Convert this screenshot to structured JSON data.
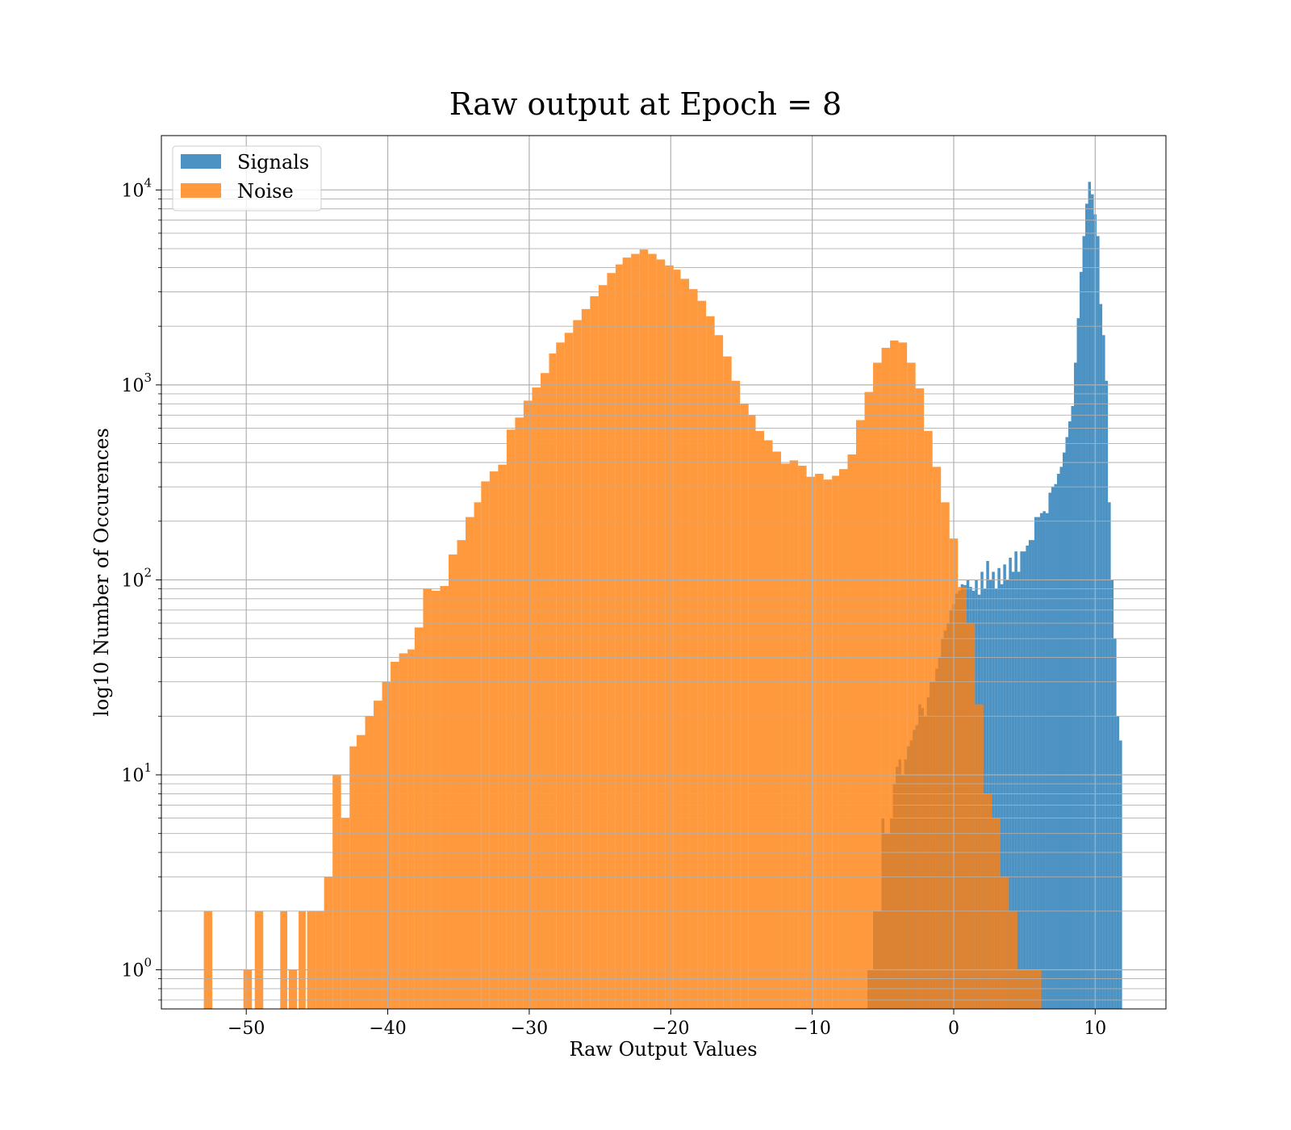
{
  "chart_data": {
    "type": "bar",
    "title": "Raw output at Epoch = 8",
    "xlabel": "Raw Output Values",
    "ylabel": "log10 Number of Occurences",
    "xlim": [
      -56,
      15
    ],
    "ylim": [
      0.63,
      19000
    ],
    "yscale": "log",
    "grid": true,
    "legend_position": "top-left",
    "x_ticks": [
      -50,
      -40,
      -30,
      -20,
      -10,
      0,
      10
    ],
    "x_tick_labels": [
      "−50",
      "−40",
      "−30",
      "−20",
      "−10",
      "0",
      "10"
    ],
    "y_ticks": [
      {
        "value": 1,
        "base": "10",
        "exp": "0"
      },
      {
        "value": 10,
        "base": "10",
        "exp": "1"
      },
      {
        "value": 100,
        "base": "10",
        "exp": "2"
      },
      {
        "value": 1000,
        "base": "10",
        "exp": "3"
      },
      {
        "value": 10000,
        "base": "10",
        "exp": "4"
      }
    ],
    "series": [
      {
        "name": "Signals",
        "color": "#1f77b4",
        "bins": [
          [
            -6.1,
            -5.9,
            1
          ],
          [
            -5.9,
            -5.7,
            1
          ],
          [
            -5.7,
            -5.5,
            2
          ],
          [
            -5.5,
            -5.3,
            2
          ],
          [
            -5.3,
            -5.1,
            2
          ],
          [
            -5.1,
            -4.9,
            6
          ],
          [
            -4.9,
            -4.7,
            5
          ],
          [
            -4.7,
            -4.5,
            5
          ],
          [
            -4.5,
            -4.3,
            6
          ],
          [
            -4.3,
            -4.1,
            9
          ],
          [
            -4.1,
            -3.9,
            11
          ],
          [
            -3.9,
            -3.7,
            12
          ],
          [
            -3.7,
            -3.5,
            10
          ],
          [
            -3.5,
            -3.3,
            12
          ],
          [
            -3.3,
            -3.1,
            14
          ],
          [
            -3.1,
            -2.9,
            15
          ],
          [
            -2.9,
            -2.7,
            17
          ],
          [
            -2.7,
            -2.5,
            18
          ],
          [
            -2.5,
            -2.3,
            23
          ],
          [
            -2.3,
            -2.1,
            22
          ],
          [
            -2.1,
            -1.9,
            20
          ],
          [
            -1.9,
            -1.7,
            25
          ],
          [
            -1.7,
            -1.5,
            30
          ],
          [
            -1.5,
            -1.3,
            30
          ],
          [
            -1.3,
            -1.1,
            35
          ],
          [
            -1.1,
            -0.9,
            40
          ],
          [
            -0.9,
            -0.7,
            50
          ],
          [
            -0.7,
            -0.5,
            55
          ],
          [
            -0.5,
            -0.3,
            60
          ],
          [
            -0.3,
            -0.1,
            70
          ],
          [
            -0.1,
            0.1,
            75
          ],
          [
            0.1,
            0.3,
            85
          ],
          [
            0.3,
            0.5,
            88
          ],
          [
            0.5,
            0.7,
            95
          ],
          [
            0.7,
            0.9,
            94
          ],
          [
            0.9,
            1.1,
            100
          ],
          [
            1.1,
            1.3,
            92
          ],
          [
            1.3,
            1.5,
            88
          ],
          [
            1.5,
            1.7,
            100
          ],
          [
            1.7,
            1.9,
            84
          ],
          [
            1.9,
            2.1,
            110
          ],
          [
            2.1,
            2.3,
            90
          ],
          [
            2.3,
            2.5,
            125
          ],
          [
            2.5,
            2.7,
            100
          ],
          [
            2.7,
            2.9,
            110
          ],
          [
            2.9,
            3.1,
            90
          ],
          [
            3.1,
            3.3,
            115
          ],
          [
            3.3,
            3.5,
            95
          ],
          [
            3.5,
            3.7,
            120
          ],
          [
            3.7,
            3.9,
            100
          ],
          [
            3.9,
            4.1,
            130
          ],
          [
            4.1,
            4.3,
            110
          ],
          [
            4.3,
            4.5,
            140
          ],
          [
            4.5,
            4.7,
            110
          ],
          [
            4.7,
            4.9,
            140
          ],
          [
            4.9,
            5.1,
            140
          ],
          [
            5.1,
            5.3,
            150
          ],
          [
            5.3,
            5.5,
            160
          ],
          [
            5.5,
            5.7,
            160
          ],
          [
            5.7,
            5.9,
            210
          ],
          [
            5.9,
            6.1,
            210
          ],
          [
            6.1,
            6.3,
            220
          ],
          [
            6.3,
            6.5,
            225
          ],
          [
            6.5,
            6.7,
            220
          ],
          [
            6.7,
            6.9,
            280
          ],
          [
            6.9,
            7.1,
            300
          ],
          [
            7.1,
            7.3,
            310
          ],
          [
            7.3,
            7.5,
            350
          ],
          [
            7.5,
            7.7,
            380
          ],
          [
            7.7,
            7.9,
            450
          ],
          [
            7.9,
            8.1,
            540
          ],
          [
            8.1,
            8.3,
            650
          ],
          [
            8.3,
            8.5,
            780
          ],
          [
            8.5,
            8.7,
            1300
          ],
          [
            8.7,
            8.9,
            2200
          ],
          [
            8.9,
            9.1,
            3800
          ],
          [
            9.1,
            9.3,
            5800
          ],
          [
            9.3,
            9.5,
            8500
          ],
          [
            9.5,
            9.7,
            11000
          ],
          [
            9.7,
            9.9,
            9500
          ],
          [
            9.9,
            10.1,
            7500
          ],
          [
            10.1,
            10.3,
            5800
          ],
          [
            10.3,
            10.5,
            2600
          ],
          [
            10.5,
            10.7,
            1800
          ],
          [
            10.7,
            10.9,
            1050
          ],
          [
            10.9,
            11.1,
            250
          ],
          [
            11.1,
            11.3,
            100
          ],
          [
            11.3,
            11.5,
            50
          ],
          [
            11.5,
            11.7,
            20
          ],
          [
            11.7,
            11.9,
            15
          ]
        ]
      },
      {
        "name": "Noise",
        "color": "#ff7f0e",
        "bins": [
          [
            -53,
            -52.4,
            2
          ],
          [
            -50.2,
            -49.6,
            1
          ],
          [
            -49.4,
            -48.8,
            2
          ],
          [
            -47.6,
            -47.1,
            2
          ],
          [
            -47,
            -46.4,
            1
          ],
          [
            -46.3,
            -45.8,
            2
          ],
          [
            -45.7,
            -45.1,
            2
          ],
          [
            -45.1,
            -44.5,
            2
          ],
          [
            -44.5,
            -43.9,
            3
          ],
          [
            -43.9,
            -43.3,
            10
          ],
          [
            -43.3,
            -42.7,
            6
          ],
          [
            -42.7,
            -42.2,
            14
          ],
          [
            -42.2,
            -41.6,
            16
          ],
          [
            -41.6,
            -41,
            20
          ],
          [
            -41,
            -40.4,
            24
          ],
          [
            -40.4,
            -39.8,
            30
          ],
          [
            -39.8,
            -39.2,
            38
          ],
          [
            -39.2,
            -38.6,
            42
          ],
          [
            -38.6,
            -38.1,
            44
          ],
          [
            -38.1,
            -37.5,
            57
          ],
          [
            -37.5,
            -36.9,
            90
          ],
          [
            -36.9,
            -36.3,
            88
          ],
          [
            -36.3,
            -35.7,
            93
          ],
          [
            -35.7,
            -35.1,
            135
          ],
          [
            -35.1,
            -34.5,
            160
          ],
          [
            -34.5,
            -33.9,
            210
          ],
          [
            -33.9,
            -33.4,
            250
          ],
          [
            -33.4,
            -32.8,
            320
          ],
          [
            -32.8,
            -32.2,
            360
          ],
          [
            -32.2,
            -31.6,
            390
          ],
          [
            -31.6,
            -31,
            590
          ],
          [
            -31,
            -30.4,
            680
          ],
          [
            -30.4,
            -29.8,
            830
          ],
          [
            -29.8,
            -29.2,
            970
          ],
          [
            -29.2,
            -28.6,
            1150
          ],
          [
            -28.6,
            -28.1,
            1450
          ],
          [
            -28.1,
            -27.5,
            1650
          ],
          [
            -27.5,
            -26.9,
            1850
          ],
          [
            -26.9,
            -26.3,
            2150
          ],
          [
            -26.3,
            -25.7,
            2450
          ],
          [
            -25.7,
            -25.1,
            2850
          ],
          [
            -25.1,
            -24.5,
            3250
          ],
          [
            -24.5,
            -23.9,
            3750
          ],
          [
            -23.9,
            -23.4,
            4150
          ],
          [
            -23.4,
            -22.8,
            4500
          ],
          [
            -22.8,
            -22.2,
            4700
          ],
          [
            -22.2,
            -21.6,
            4950
          ],
          [
            -21.6,
            -21,
            4700
          ],
          [
            -21,
            -20.4,
            4400
          ],
          [
            -20.4,
            -19.8,
            4100
          ],
          [
            -19.8,
            -19.3,
            3900
          ],
          [
            -19.3,
            -18.7,
            3500
          ],
          [
            -18.7,
            -18.1,
            3100
          ],
          [
            -18.1,
            -17.5,
            2700
          ],
          [
            -17.5,
            -16.9,
            2250
          ],
          [
            -16.9,
            -16.3,
            1800
          ],
          [
            -16.3,
            -15.7,
            1400
          ],
          [
            -15.7,
            -15.1,
            1050
          ],
          [
            -15.1,
            -14.5,
            800
          ],
          [
            -14.5,
            -14,
            700
          ],
          [
            -14,
            -13.4,
            580
          ],
          [
            -13.4,
            -12.8,
            520
          ],
          [
            -12.8,
            -12.2,
            455
          ],
          [
            -12.2,
            -11.6,
            395
          ],
          [
            -11.6,
            -11,
            410
          ],
          [
            -11,
            -10.4,
            385
          ],
          [
            -10.4,
            -9.8,
            338
          ],
          [
            -9.8,
            -9.2,
            350
          ],
          [
            -9.2,
            -8.6,
            327
          ],
          [
            -8.6,
            -8.1,
            342
          ],
          [
            -8.1,
            -7.5,
            370
          ],
          [
            -7.5,
            -6.9,
            440
          ],
          [
            -6.9,
            -6.3,
            660
          ],
          [
            -6.3,
            -5.7,
            920
          ],
          [
            -5.7,
            -5.1,
            1300
          ],
          [
            -5.1,
            -4.5,
            1550
          ],
          [
            -4.5,
            -3.9,
            1690
          ],
          [
            -3.9,
            -3.3,
            1650
          ],
          [
            -3.3,
            -2.7,
            1300
          ],
          [
            -2.7,
            -2.1,
            960
          ],
          [
            -2.1,
            -1.5,
            580
          ],
          [
            -1.5,
            -0.9,
            380
          ],
          [
            -0.9,
            -0.3,
            250
          ],
          [
            -0.3,
            0.3,
            163
          ],
          [
            0.3,
            0.9,
            92
          ],
          [
            0.9,
            1.5,
            60
          ],
          [
            1.5,
            2.1,
            23
          ],
          [
            2.1,
            2.7,
            8
          ],
          [
            2.7,
            3.3,
            6
          ],
          [
            3.3,
            3.9,
            3
          ],
          [
            3.9,
            4.5,
            2
          ],
          [
            4.5,
            6.2,
            1
          ]
        ]
      }
    ]
  }
}
